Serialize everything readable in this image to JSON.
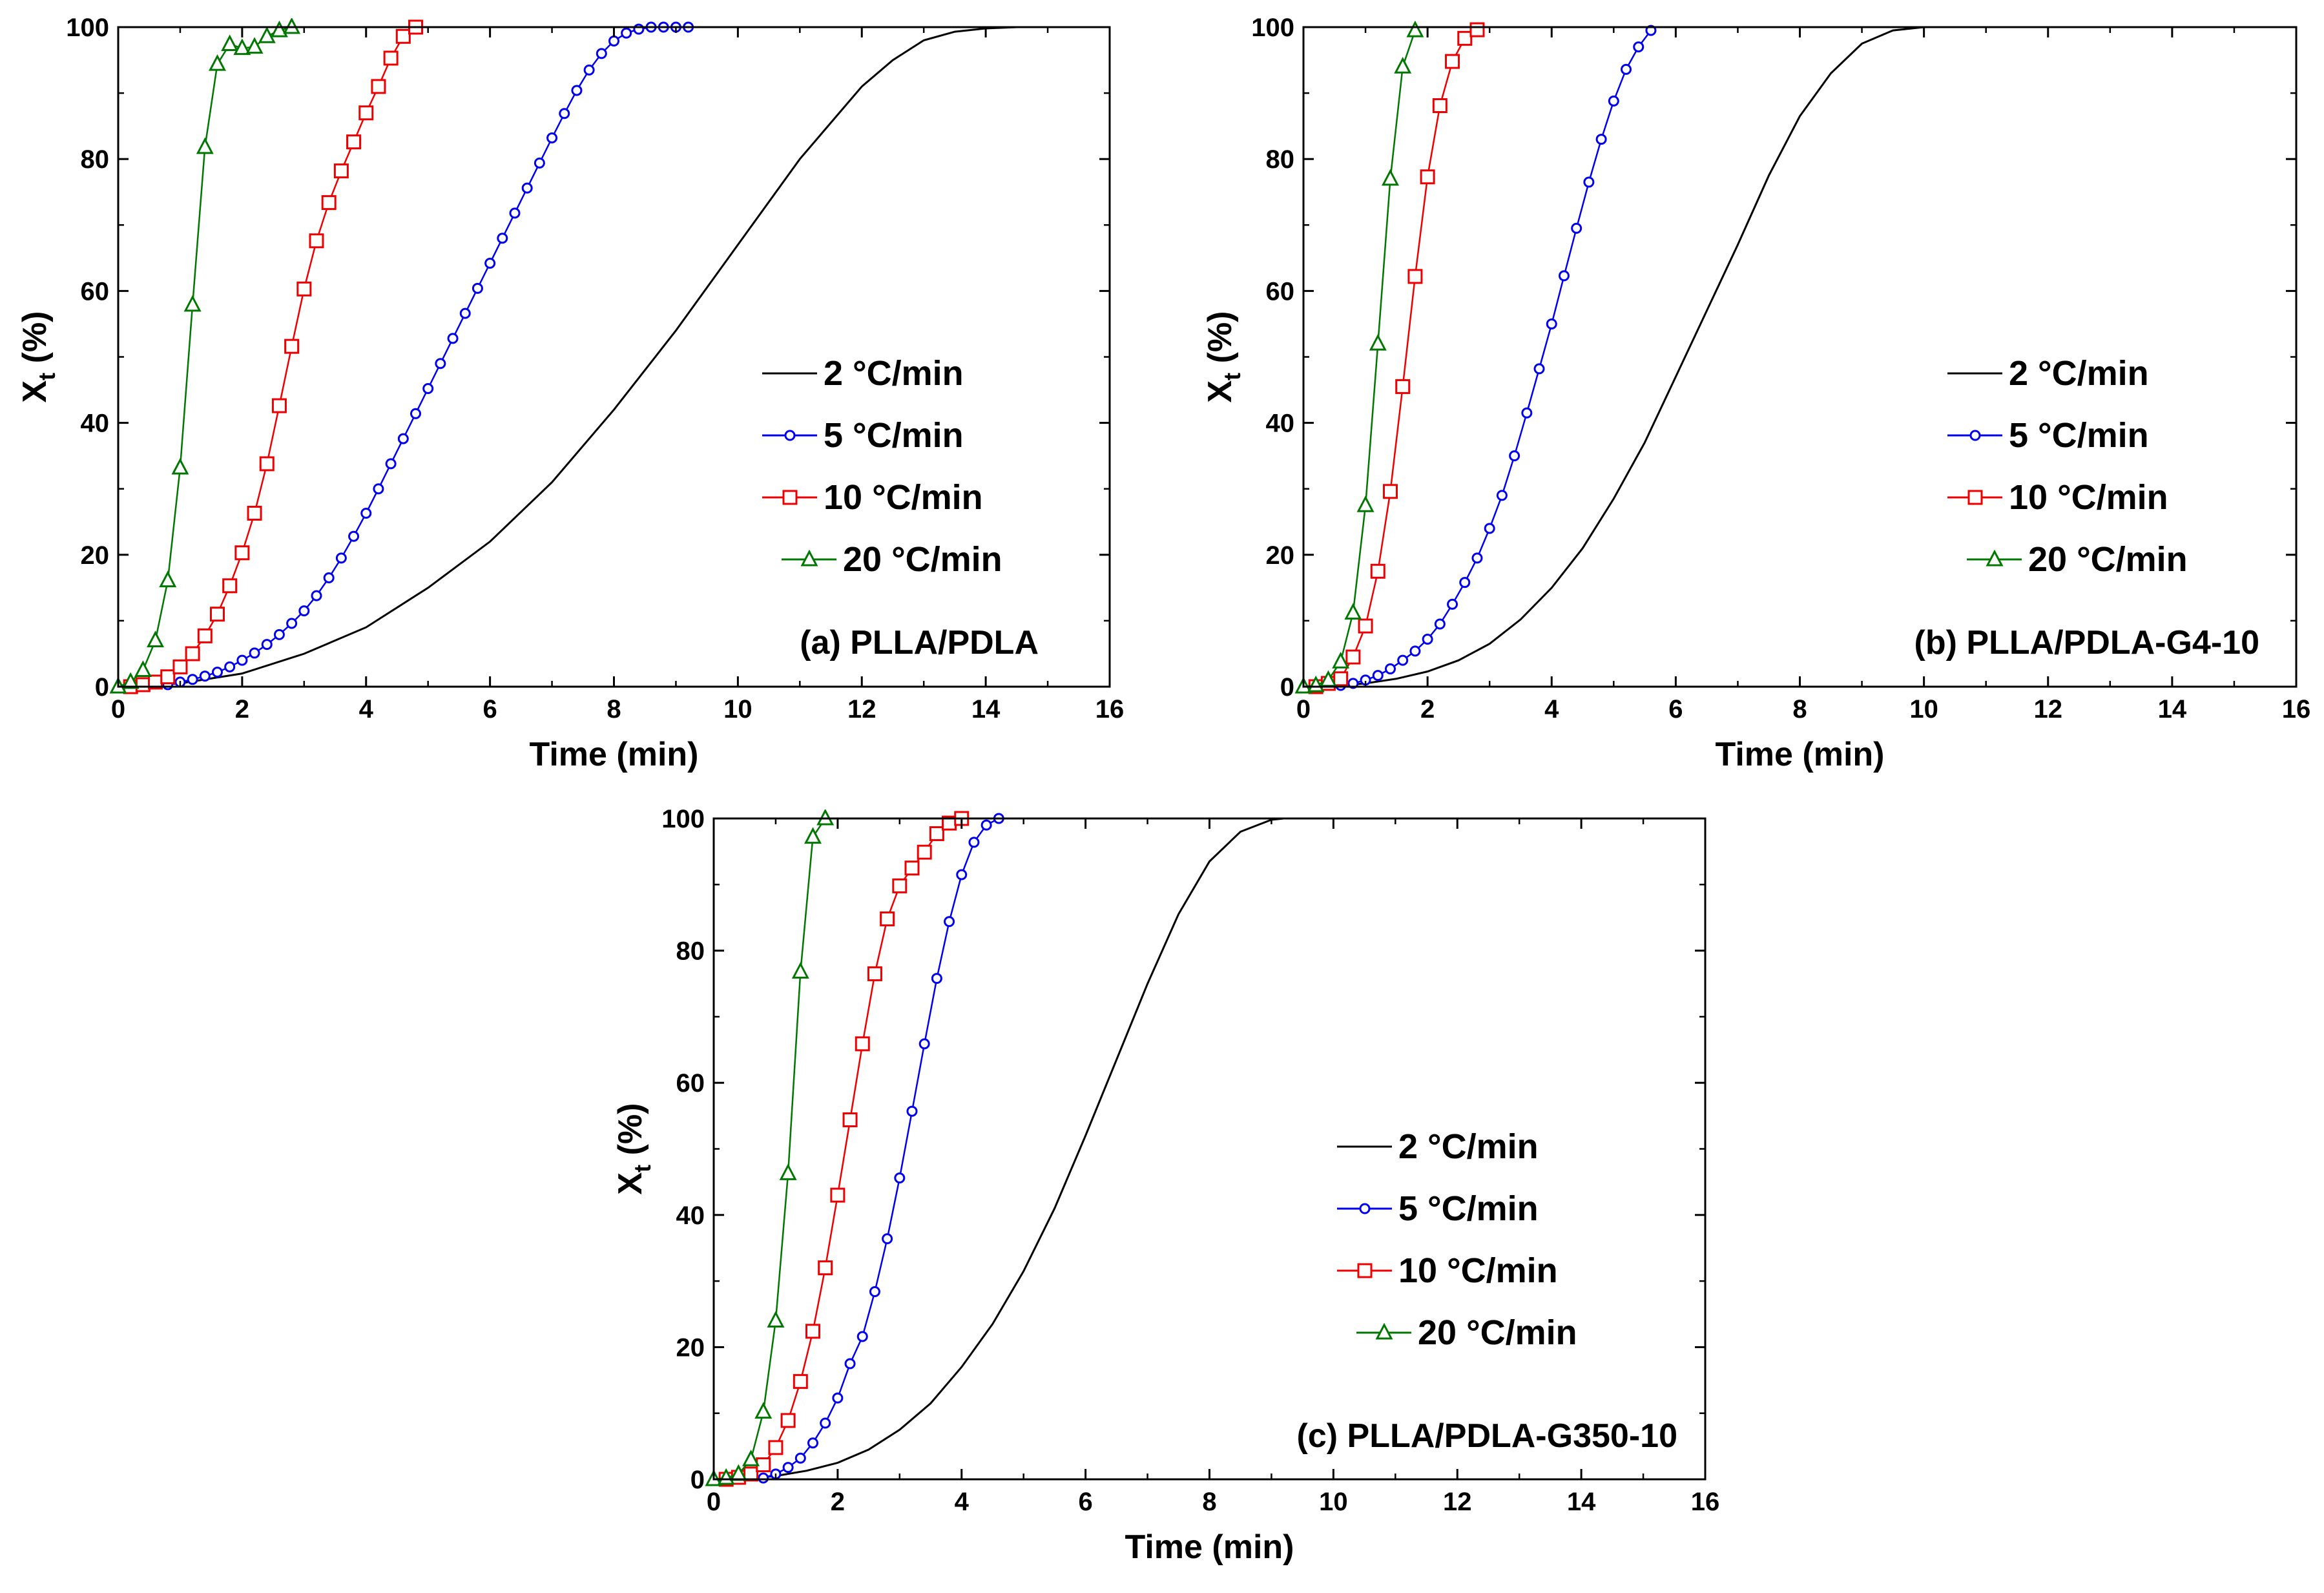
{
  "chart_data": [
    {
      "type": "line",
      "panel_label": "(a) PLLA/PDLA",
      "xlabel": "Time (min)",
      "ylabel_main": "X",
      "ylabel_sub": "t",
      "ylabel_unit": " (%)",
      "xlim": [
        0,
        16
      ],
      "ylim": [
        0,
        100
      ],
      "xticks": [
        "0",
        "2",
        "4",
        "6",
        "8",
        "10",
        "12",
        "14",
        "16"
      ],
      "yticks": [
        "0",
        "20",
        "40",
        "60",
        "80",
        "100"
      ],
      "legend_position": "center-right",
      "series": [
        {
          "name": "2 °C/min",
          "color": "#000000",
          "marker": "none",
          "x": [
            0,
            1,
            2,
            3,
            4,
            5,
            6,
            7,
            8,
            9,
            10,
            11,
            12,
            12.5,
            13,
            13.5,
            14,
            14.5,
            15
          ],
          "y": [
            0,
            0.5,
            2,
            5,
            9,
            15,
            22,
            31,
            42,
            54,
            67,
            80,
            91,
            95,
            98,
            99.3,
            99.8,
            100,
            100
          ]
        },
        {
          "name": "5 °C/min",
          "color": "#0000ee",
          "marker": "circle",
          "x": [
            0.8,
            1,
            1.2,
            1.4,
            1.6,
            1.8,
            2,
            2.2,
            2.4,
            2.6,
            2.8,
            3,
            3.2,
            3.4,
            3.6,
            3.8,
            4,
            4.2,
            4.4,
            4.6,
            4.8,
            5,
            5.2,
            5.4,
            5.6,
            5.8,
            6,
            6.2,
            6.4,
            6.6,
            6.8,
            7,
            7.2,
            7.4,
            7.6,
            7.8,
            8,
            8.2,
            8.4,
            8.6,
            8.8,
            9,
            9.2
          ],
          "y": [
            0.3,
            0.7,
            1.1,
            1.6,
            2.2,
            3,
            4,
            5.1,
            6.4,
            7.9,
            9.6,
            11.5,
            13.8,
            16.5,
            19.5,
            22.8,
            26.3,
            30,
            33.8,
            37.6,
            41.4,
            45.2,
            49,
            52.8,
            56.6,
            60.4,
            64.2,
            68,
            71.8,
            75.6,
            79.4,
            83.2,
            86.9,
            90.4,
            93.5,
            96,
            97.9,
            99.1,
            99.7,
            100,
            100,
            100,
            100
          ]
        },
        {
          "name": "10 °C/min",
          "color": "#ee0000",
          "marker": "square",
          "x": [
            0.2,
            0.4,
            0.6,
            0.8,
            1,
            1.2,
            1.4,
            1.6,
            1.8,
            2,
            2.2,
            2.4,
            2.6,
            2.8,
            3,
            3.2,
            3.4,
            3.6,
            3.8,
            4,
            4.2,
            4.4,
            4.6,
            4.8
          ],
          "y": [
            0,
            0.3,
            0.7,
            1.5,
            3,
            5,
            7.7,
            11,
            15.3,
            20.3,
            26.3,
            33.8,
            42.6,
            51.6,
            60.3,
            67.6,
            73.4,
            78.2,
            82.6,
            87,
            91,
            95.3,
            98.6,
            100
          ]
        },
        {
          "name": "20 °C/min",
          "color": "#007700",
          "marker": "triangle",
          "x": [
            0,
            0.2,
            0.4,
            0.6,
            0.8,
            1,
            1.2,
            1.4,
            1.6,
            1.8,
            2,
            2.2,
            2.4,
            2.6,
            2.8
          ],
          "y": [
            0,
            0.7,
            2.5,
            7,
            16.1,
            33.2,
            57.9,
            81.8,
            94.4,
            97.4,
            96.8,
            97,
            98.6,
            99.5,
            100
          ]
        }
      ]
    },
    {
      "type": "line",
      "panel_label": "(b) PLLA/PDLA-G4-10",
      "xlabel": "Time (min)",
      "ylabel_main": "X",
      "ylabel_sub": "t",
      "ylabel_unit": " (%)",
      "xlim": [
        0,
        16
      ],
      "ylim": [
        0,
        100
      ],
      "xticks": [
        "0",
        "2",
        "4",
        "6",
        "8",
        "10",
        "12",
        "14",
        "16"
      ],
      "yticks": [
        "0",
        "20",
        "40",
        "60",
        "80",
        "100"
      ],
      "legend_position": "center-right",
      "series": [
        {
          "name": "2 °C/min",
          "color": "#000000",
          "marker": "none",
          "x": [
            0,
            0.5,
            1,
            1.5,
            2,
            2.5,
            3,
            3.5,
            4,
            4.5,
            5,
            5.5,
            6,
            6.5,
            7,
            7.5,
            8,
            8.5,
            9,
            9.5,
            10
          ],
          "y": [
            0,
            0.1,
            0.5,
            1.2,
            2.3,
            4,
            6.5,
            10.2,
            15,
            21,
            28.5,
            37,
            47,
            57,
            67,
            77.5,
            86.5,
            93,
            97.5,
            99.5,
            100
          ]
        },
        {
          "name": "5 °C/min",
          "color": "#0000ee",
          "marker": "circle",
          "x": [
            0.6,
            0.8,
            1,
            1.2,
            1.4,
            1.6,
            1.8,
            2,
            2.2,
            2.4,
            2.6,
            2.8,
            3,
            3.2,
            3.4,
            3.6,
            3.8,
            4,
            4.2,
            4.4,
            4.6,
            4.8,
            5,
            5.2,
            5.4,
            5.6
          ],
          "y": [
            0.2,
            0.5,
            1,
            1.7,
            2.7,
            4,
            5.4,
            7.2,
            9.5,
            12.5,
            15.8,
            19.5,
            24,
            29,
            35,
            41.5,
            48.2,
            55,
            62.3,
            69.5,
            76.5,
            83,
            88.8,
            93.6,
            97,
            99.5
          ]
        },
        {
          "name": "10 °C/min",
          "color": "#ee0000",
          "marker": "square",
          "x": [
            0.2,
            0.4,
            0.6,
            0.8,
            1,
            1.2,
            1.4,
            1.6,
            1.8,
            2,
            2.2,
            2.4,
            2.6,
            2.8
          ],
          "y": [
            0,
            0.5,
            1.2,
            4.5,
            9.2,
            17.5,
            29.6,
            45.5,
            62.2,
            77.3,
            88.1,
            94.8,
            98.3,
            99.6
          ]
        },
        {
          "name": "20 °C/min",
          "color": "#007700",
          "marker": "triangle",
          "x": [
            0,
            0.2,
            0.4,
            0.6,
            0.8,
            1,
            1.2,
            1.4,
            1.6,
            1.8
          ],
          "y": [
            0,
            0.2,
            1,
            3.8,
            11.2,
            27.5,
            52,
            77,
            94,
            99.5
          ]
        }
      ]
    },
    {
      "type": "line",
      "panel_label": "(c) PLLA/PDLA-G350-10",
      "xlabel": "Time (min)",
      "ylabel_main": "X",
      "ylabel_sub": "t",
      "ylabel_unit": " (%)",
      "xlim": [
        0,
        16
      ],
      "ylim": [
        0,
        100
      ],
      "xticks": [
        "0",
        "2",
        "4",
        "6",
        "8",
        "10",
        "12",
        "14",
        "16"
      ],
      "yticks": [
        "0",
        "20",
        "40",
        "60",
        "80",
        "100"
      ],
      "legend_position": "center-right",
      "series": [
        {
          "name": "2 °C/min",
          "color": "#000000",
          "marker": "none",
          "x": [
            0,
            0.5,
            1,
            1.5,
            2,
            2.5,
            3,
            3.5,
            4,
            4.5,
            5,
            5.5,
            6,
            6.5,
            7,
            7.5,
            8,
            8.5,
            9,
            9.2
          ],
          "y": [
            0,
            0.1,
            0.5,
            1.3,
            2.5,
            4.5,
            7.5,
            11.5,
            17,
            23.5,
            31.5,
            41,
            52,
            63.5,
            75,
            85.5,
            93.5,
            98,
            99.8,
            100
          ]
        },
        {
          "name": "5 °C/min",
          "color": "#0000ee",
          "marker": "circle",
          "x": [
            0.8,
            1,
            1.2,
            1.4,
            1.6,
            1.8,
            2,
            2.2,
            2.4,
            2.6,
            2.8,
            3,
            3.2,
            3.4,
            3.6,
            3.8,
            4,
            4.2,
            4.4,
            4.6
          ],
          "y": [
            0.2,
            0.8,
            1.8,
            3.2,
            5.5,
            8.5,
            12.3,
            17.5,
            21.6,
            28.4,
            36.4,
            45.6,
            55.7,
            65.9,
            75.8,
            84.4,
            91.5,
            96.4,
            99,
            100
          ]
        },
        {
          "name": "10 °C/min",
          "color": "#ee0000",
          "marker": "square",
          "x": [
            0.2,
            0.4,
            0.6,
            0.8,
            1,
            1.2,
            1.4,
            1.6,
            1.8,
            2,
            2.2,
            2.4,
            2.6,
            2.8,
            3,
            3.2,
            3.4,
            3.6,
            3.8,
            4
          ],
          "y": [
            0,
            0.3,
            0.8,
            2.2,
            4.8,
            8.9,
            14.8,
            22.4,
            32,
            43,
            54.4,
            65.9,
            76.5,
            84.8,
            89.8,
            92.5,
            94.9,
            97.7,
            99.3,
            100
          ]
        },
        {
          "name": "20 °C/min",
          "color": "#007700",
          "marker": "triangle",
          "x": [
            0,
            0.2,
            0.4,
            0.6,
            0.8,
            1,
            1.2,
            1.4,
            1.6,
            1.8
          ],
          "y": [
            0,
            0.2,
            0.8,
            3,
            10.2,
            24,
            46.3,
            76.8,
            97.2,
            100
          ]
        }
      ]
    }
  ]
}
